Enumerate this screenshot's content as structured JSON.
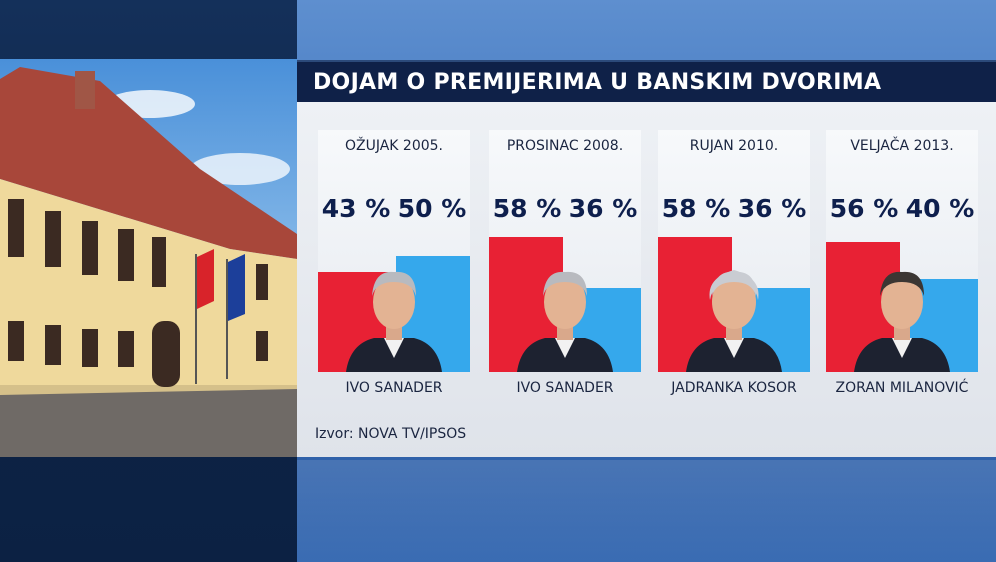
{
  "header": {
    "title": "DOJAM O PREMIJERIMA U BANSKIM DVORIMA"
  },
  "source": "Izvor: NOVA TV/IPSOS",
  "colors": {
    "positive": "#e82134",
    "negative": "#35a8ec",
    "title_bar": "#0f2148"
  },
  "chart_data": {
    "type": "bar",
    "title": "DOJAM O PREMIJERIMA U BANSKIM DVORIMA",
    "categories": [
      "OŽUJAK 2005.",
      "PROSINAC 2008.",
      "RUJAN 2010.",
      "VELJAČA 2013."
    ],
    "names": [
      "IVO SANADER",
      "IVO SANADER",
      "JADRANKA KOSOR",
      "ZORAN MILANOVIĆ"
    ],
    "series": [
      {
        "values": [
          43,
          58,
          58,
          56
        ],
        "labels": [
          "43 %",
          "58 %",
          "58 %",
          "56 %"
        ],
        "color": "#e82134"
      },
      {
        "values": [
          50,
          36,
          36,
          40
        ],
        "labels": [
          "50 %",
          "36 %",
          "36 %",
          "40 %"
        ],
        "color": "#35a8ec"
      }
    ],
    "ylim": [
      0,
      100
    ],
    "grid": false,
    "legend": "none"
  }
}
